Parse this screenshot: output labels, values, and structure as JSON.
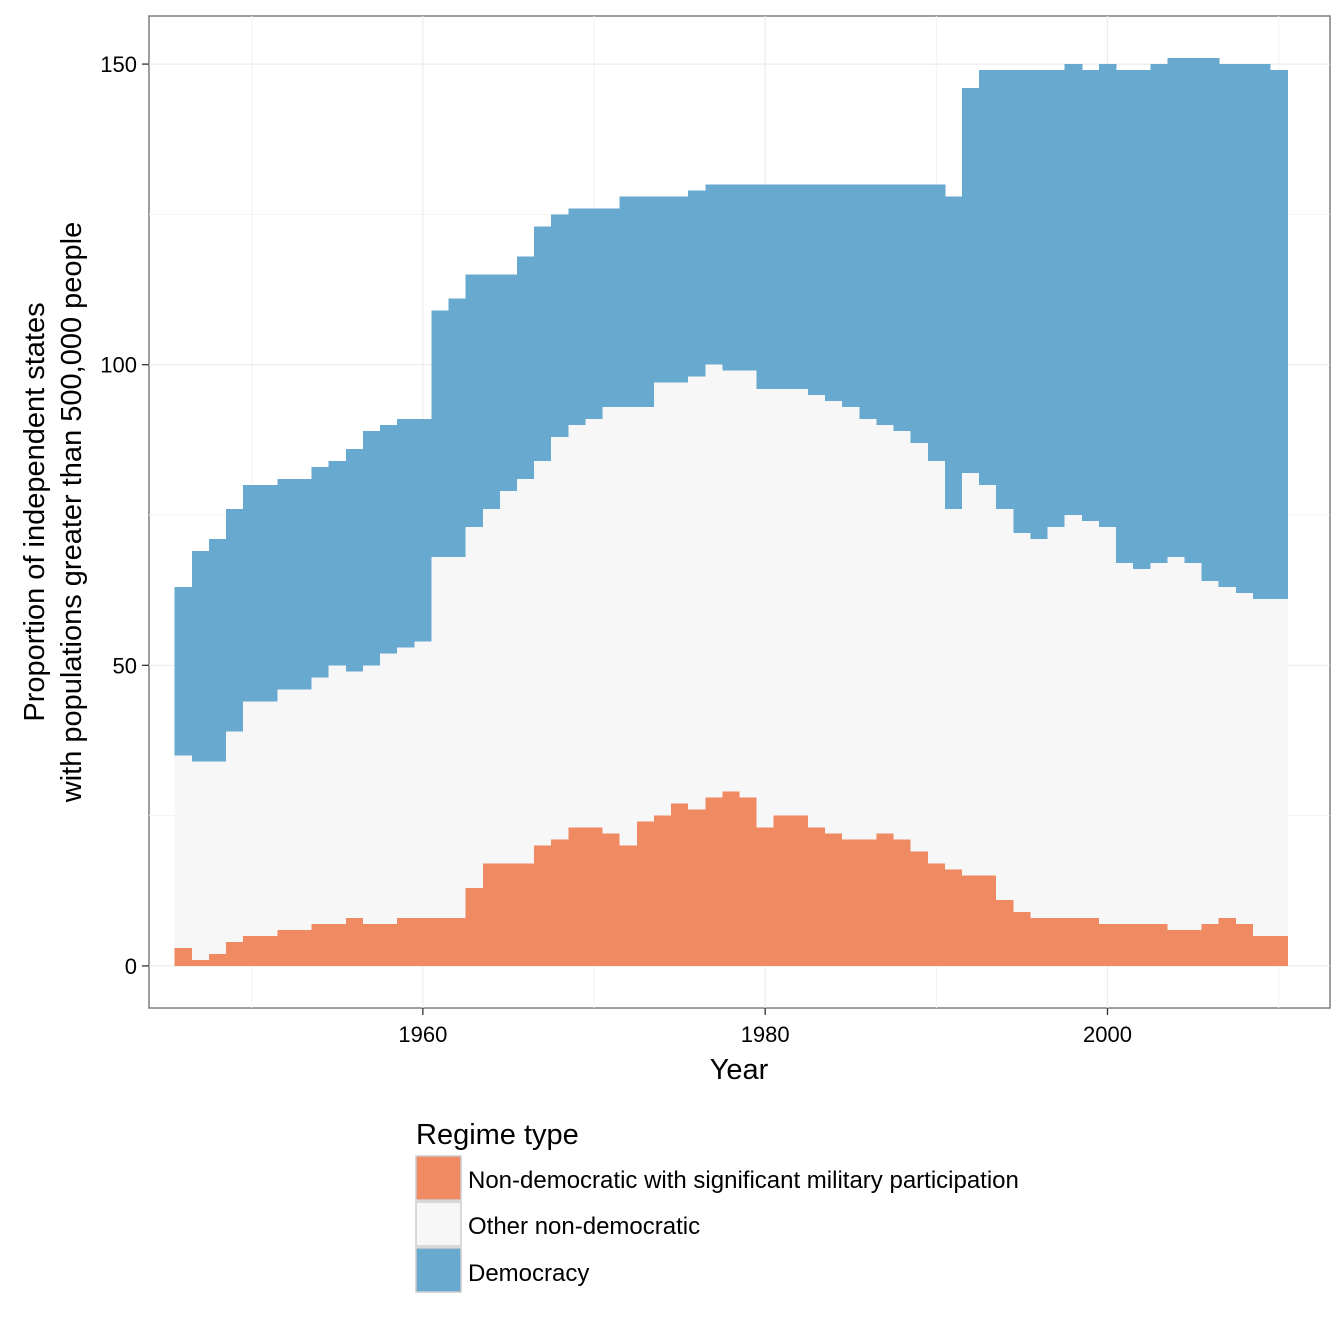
{
  "chart_data": {
    "type": "bar",
    "subtype": "stacked",
    "xlabel": "Year",
    "ylabel_lines": [
      "Proportion of independent states",
      "with populations greater than 500,000 people"
    ],
    "xlim": [
      1944,
      2013
    ],
    "ylim": [
      -7,
      158
    ],
    "x_ticks": [
      1960,
      1980,
      2000
    ],
    "x_tick_labels": [
      "1960",
      "1980",
      "2000"
    ],
    "y_ticks": [
      0,
      50,
      100,
      150
    ],
    "y_tick_labels": [
      "0",
      "50",
      "100",
      "150"
    ],
    "grid": true,
    "legend": {
      "title": "Regime type",
      "position": "bottom"
    },
    "x": [
      1946,
      1947,
      1948,
      1949,
      1950,
      1951,
      1952,
      1953,
      1954,
      1955,
      1956,
      1957,
      1958,
      1959,
      1960,
      1961,
      1962,
      1963,
      1964,
      1965,
      1966,
      1967,
      1968,
      1969,
      1970,
      1971,
      1972,
      1973,
      1974,
      1975,
      1976,
      1977,
      1978,
      1979,
      1980,
      1981,
      1982,
      1983,
      1984,
      1985,
      1986,
      1987,
      1988,
      1989,
      1990,
      1991,
      1992,
      1993,
      1994,
      1995,
      1996,
      1997,
      1998,
      1999,
      2000,
      2001,
      2002,
      2003,
      2004,
      2005,
      2006,
      2007,
      2008,
      2009,
      2010
    ],
    "series": [
      {
        "name": "Non-democratic with significant military participation",
        "color": "#ef8a62",
        "values": [
          3,
          1,
          2,
          4,
          5,
          5,
          6,
          6,
          7,
          7,
          8,
          7,
          7,
          8,
          8,
          8,
          8,
          13,
          17,
          17,
          17,
          20,
          21,
          23,
          23,
          22,
          20,
          24,
          25,
          27,
          26,
          28,
          29,
          28,
          23,
          25,
          25,
          23,
          22,
          21,
          21,
          22,
          21,
          19,
          17,
          16,
          15,
          15,
          11,
          9,
          8,
          8,
          8,
          8,
          7,
          7,
          7,
          7,
          6,
          6,
          7,
          8,
          7,
          5,
          5
        ]
      },
      {
        "name": "Other non-democratic",
        "color": "#f7f7f7",
        "values": [
          32,
          33,
          32,
          35,
          39,
          39,
          40,
          40,
          41,
          43,
          41,
          43,
          45,
          45,
          46,
          60,
          60,
          60,
          59,
          62,
          64,
          64,
          67,
          67,
          68,
          71,
          73,
          69,
          72,
          70,
          72,
          72,
          70,
          71,
          73,
          71,
          71,
          72,
          72,
          72,
          70,
          68,
          68,
          68,
          67,
          60,
          67,
          65,
          65,
          63,
          63,
          65,
          67,
          66,
          66,
          60,
          59,
          60,
          62,
          61,
          57,
          55,
          55,
          56,
          56
        ]
      },
      {
        "name": "Democracy",
        "color": "#67a9cf",
        "values": [
          28,
          35,
          37,
          37,
          36,
          36,
          35,
          35,
          35,
          34,
          37,
          39,
          38,
          38,
          37,
          41,
          43,
          42,
          39,
          36,
          37,
          39,
          37,
          36,
          35,
          33,
          35,
          35,
          31,
          31,
          31,
          30,
          31,
          31,
          34,
          34,
          34,
          35,
          36,
          37,
          39,
          40,
          41,
          43,
          46,
          52,
          64,
          69,
          73,
          77,
          78,
          76,
          75,
          75,
          77,
          82,
          83,
          83,
          83,
          84,
          87,
          87,
          88,
          89,
          88
        ]
      }
    ]
  }
}
